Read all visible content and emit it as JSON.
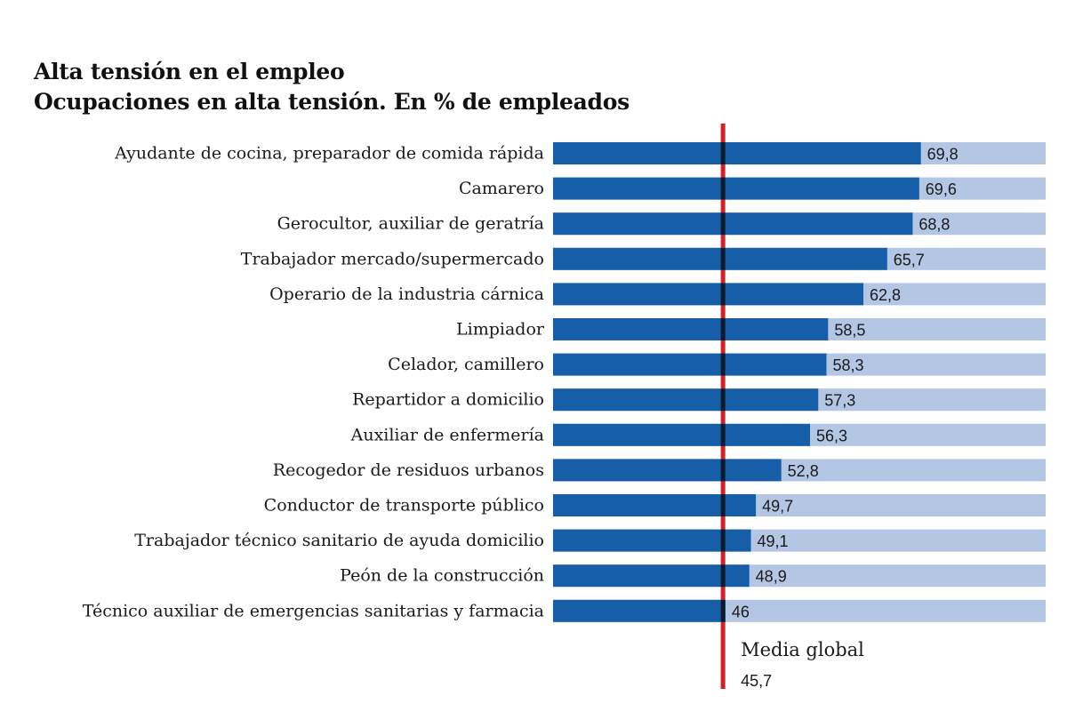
{
  "chart_data": {
    "type": "bar",
    "orientation": "horizontal",
    "title": "Alta tensión en el empleo",
    "subtitle": "Ocupaciones en alta tensión. En % de empleados",
    "categories": [
      "Ayudante de cocina, preparador de comida rápida",
      "Camarero",
      "Gerocultor, auxiliar de geratría",
      "Trabajador mercado/supermercado",
      "Operario de la industria cárnica",
      "Limpiador",
      "Celador, camillero",
      "Repartidor a domicilio",
      "Auxiliar de enfermería",
      "Recogedor de residuos urbanos",
      "Conductor de transporte público",
      "Trabajador técnico sanitario de ayuda domicilio",
      "Peón de la construcción",
      "Técnico auxiliar de emergencias sanitarias y farmacia"
    ],
    "values": [
      69.8,
      69.6,
      68.8,
      65.7,
      62.8,
      58.5,
      58.3,
      57.3,
      56.3,
      52.8,
      49.7,
      49.1,
      48.9,
      46
    ],
    "value_labels": [
      "69,8",
      "69,6",
      "68,8",
      "65,7",
      "62,8",
      "58,5",
      "58,3",
      "57,3",
      "56,3",
      "52,8",
      "49,7",
      "49,1",
      "48,9",
      "46"
    ],
    "xlim": [
      25,
      85
    ],
    "reference_line": {
      "label": "Media global",
      "value": 45.7,
      "value_label": "45,7"
    },
    "colors": {
      "bar": "#165ea8",
      "background_bar": "#b3c6e4",
      "reference_line": "#d42027",
      "overlap": "#0d1b2a"
    }
  }
}
